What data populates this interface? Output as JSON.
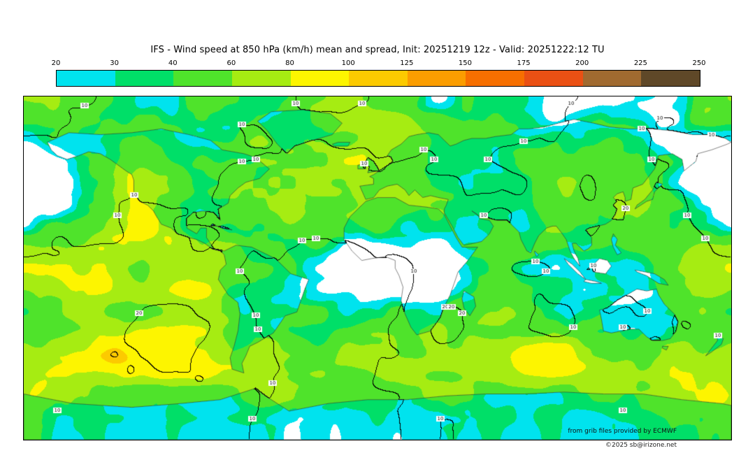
{
  "title": "IFS - Wind speed at 850 hPa (km/h) mean and spread, Init: 20251219 12z - Valid: 20251222:12 TU",
  "colorbar": {
    "ticks": [
      "20",
      "30",
      "40",
      "60",
      "80",
      "100",
      "125",
      "150",
      "175",
      "200",
      "225",
      "250"
    ],
    "colors": [
      "#00e3ee",
      "#00df68",
      "#4fe32b",
      "#a6ec12",
      "#fdf500",
      "#fcca00",
      "#fb9d00",
      "#f76f00",
      "#ea5014",
      "#a06a30",
      "#5f4828"
    ]
  },
  "credits": {
    "provider": "from grib files provided by ECMWF",
    "copyright": "©2025 sb@irizone.net"
  },
  "chart_data": {
    "type": "heatmap",
    "title": "IFS - Wind speed at 850 hPa (km/h) mean and spread",
    "model": "IFS",
    "variable": "Wind speed",
    "level": "850 hPa",
    "units": "km/h",
    "statistic": "mean and spread",
    "init": "20251219 12z",
    "valid": "20251222:12 TU",
    "projection": "equirectangular global world map",
    "fill_levels": [
      20,
      30,
      40,
      60,
      80,
      100,
      125,
      150,
      175,
      200,
      225,
      250
    ],
    "fill_colors": [
      "#00e3ee",
      "#00df68",
      "#4fe32b",
      "#a6ec12",
      "#fdf500",
      "#fcca00",
      "#fb9d00",
      "#f76f00",
      "#ea5014",
      "#a06a30",
      "#5f4828"
    ],
    "spread_contour_levels": [
      10,
      20,
      30
    ],
    "legend_position": "top"
  }
}
